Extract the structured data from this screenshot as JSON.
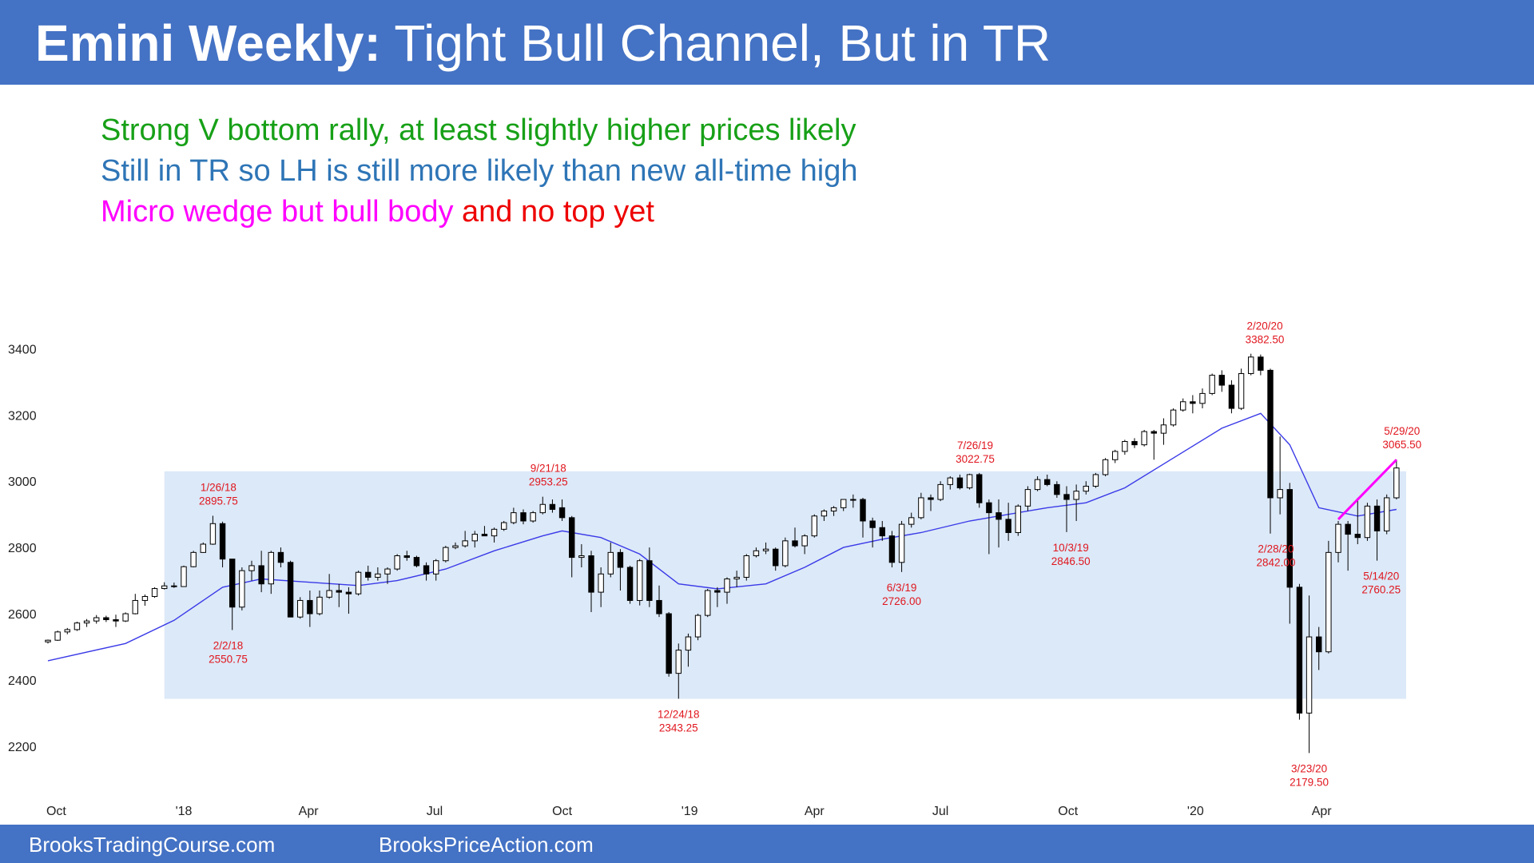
{
  "header": {
    "title_bold": "Emini Weekly:",
    "title_rest": "Tight Bull Channel, But in TR"
  },
  "notes": [
    {
      "segments": [
        {
          "text": "Strong V bottom rally, at least slightly higher prices likely",
          "color": "#17a017"
        }
      ]
    },
    {
      "segments": [
        {
          "text": "Still in TR so LH is still more likely than new all-time high",
          "color": "#2e75b6"
        }
      ]
    },
    {
      "segments": [
        {
          "text": "Micro wedge but bull body ",
          "color": "#ff00ff"
        },
        {
          "text": "and no top yet",
          "color": "#ee0000"
        }
      ]
    }
  ],
  "footer": {
    "left": "BrooksTradingCourse.com",
    "right": "BrooksPriceAction.com"
  },
  "colors": {
    "bar": "#4472c4",
    "range_fill": "#dce9f8",
    "ma_line": "#3a3ae8",
    "wedge_line": "#ff00ff",
    "label": "#e0161e",
    "bull_body": "#ffffff",
    "bear_body": "#000000"
  },
  "chart_data": {
    "type": "candlestick",
    "title": "",
    "timeframe": "weekly",
    "x_range": [
      "2017-09-25",
      "2020-06-01"
    ],
    "y_range": [
      2050,
      3500
    ],
    "yticks": [
      2200,
      2400,
      2600,
      2800,
      3000,
      3200,
      3400
    ],
    "xticks": [
      {
        "label": "Oct",
        "date": "2017-10-01"
      },
      {
        "label": "'18",
        "date": "2018-01-01"
      },
      {
        "label": "Apr",
        "date": "2018-04-01"
      },
      {
        "label": "Jul",
        "date": "2018-07-01"
      },
      {
        "label": "Oct",
        "date": "2018-10-01"
      },
      {
        "label": "'19",
        "date": "2019-01-01"
      },
      {
        "label": "Apr",
        "date": "2019-04-01"
      },
      {
        "label": "Jul",
        "date": "2019-07-01"
      },
      {
        "label": "Oct",
        "date": "2019-10-01"
      },
      {
        "label": "'20",
        "date": "2020-01-01"
      },
      {
        "label": "Apr",
        "date": "2020-04-01"
      }
    ],
    "trading_range": {
      "start": "2017-12-18",
      "end": "2020-06-01",
      "low": 2343,
      "high": 3030
    },
    "annotations": [
      {
        "date": "2018-01-26",
        "lines": [
          "1/26/18",
          "2895.75"
        ],
        "pos": "above",
        "value": 2895.75
      },
      {
        "date": "2018-02-02",
        "lines": [
          "2/2/18",
          "2550.75"
        ],
        "pos": "below",
        "value": 2550.75
      },
      {
        "date": "2018-09-21",
        "lines": [
          "9/21/18",
          "2953.25"
        ],
        "pos": "above",
        "value": 2953.25
      },
      {
        "date": "2018-12-24",
        "lines": [
          "12/24/18",
          "2343.25"
        ],
        "pos": "below",
        "value": 2343.25
      },
      {
        "date": "2019-06-03",
        "lines": [
          "6/3/19",
          "2726.00"
        ],
        "pos": "below",
        "value": 2726.0
      },
      {
        "date": "2019-07-26",
        "lines": [
          "7/26/19",
          "3022.75"
        ],
        "pos": "above",
        "value": 3022.75
      },
      {
        "date": "2019-10-03",
        "lines": [
          "10/3/19",
          "2846.50"
        ],
        "pos": "below",
        "value": 2846.5
      },
      {
        "date": "2020-02-20",
        "lines": [
          "2/20/20",
          "3382.50"
        ],
        "pos": "above",
        "value": 3382.5
      },
      {
        "date": "2020-02-28",
        "lines": [
          "2/28/20",
          "2842.00"
        ],
        "pos": "below",
        "value": 2842.0
      },
      {
        "date": "2020-03-23",
        "lines": [
          "3/23/20",
          "2179.50"
        ],
        "pos": "below",
        "value": 2179.5
      },
      {
        "date": "2020-05-14",
        "lines": [
          "5/14/20",
          "2760.25"
        ],
        "pos": "below",
        "value": 2760.25
      },
      {
        "date": "2020-05-29",
        "lines": [
          "5/29/20",
          "3065.50"
        ],
        "pos": "above",
        "value": 3065.5
      }
    ],
    "wedge_line": [
      {
        "date": "2020-04-13",
        "value": 2885
      },
      {
        "date": "2020-05-25",
        "value": 3065
      }
    ],
    "moving_average_20": [
      [
        "2017-09-25",
        2458
      ],
      [
        "2017-11-20",
        2510
      ],
      [
        "2017-12-25",
        2580
      ],
      [
        "2018-01-29",
        2680
      ],
      [
        "2018-02-26",
        2705
      ],
      [
        "2018-04-02",
        2695
      ],
      [
        "2018-05-07",
        2685
      ],
      [
        "2018-06-04",
        2700
      ],
      [
        "2018-07-09",
        2735
      ],
      [
        "2018-08-13",
        2790
      ],
      [
        "2018-09-17",
        2835
      ],
      [
        "2018-10-01",
        2850
      ],
      [
        "2018-10-29",
        2830
      ],
      [
        "2018-11-26",
        2780
      ],
      [
        "2018-12-24",
        2690
      ],
      [
        "2019-01-21",
        2675
      ],
      [
        "2019-02-25",
        2690
      ],
      [
        "2019-03-25",
        2740
      ],
      [
        "2019-04-22",
        2800
      ],
      [
        "2019-05-20",
        2825
      ],
      [
        "2019-06-17",
        2845
      ],
      [
        "2019-07-22",
        2880
      ],
      [
        "2019-08-19",
        2900
      ],
      [
        "2019-09-16",
        2920
      ],
      [
        "2019-10-14",
        2935
      ],
      [
        "2019-11-11",
        2980
      ],
      [
        "2019-12-16",
        3070
      ],
      [
        "2020-01-20",
        3160
      ],
      [
        "2020-02-17",
        3205
      ],
      [
        "2020-03-09",
        3110
      ],
      [
        "2020-03-30",
        2920
      ],
      [
        "2020-04-27",
        2895
      ],
      [
        "2020-05-25",
        2915
      ]
    ],
    "candles": [
      [
        "2017-09-25",
        2515,
        2522,
        2510,
        2520
      ],
      [
        "2017-10-02",
        2520,
        2549,
        2518,
        2545
      ],
      [
        "2017-10-09",
        2545,
        2557,
        2538,
        2552
      ],
      [
        "2017-10-16",
        2552,
        2576,
        2548,
        2572
      ],
      [
        "2017-10-23",
        2572,
        2584,
        2560,
        2578
      ],
      [
        "2017-10-30",
        2578,
        2596,
        2570,
        2588
      ],
      [
        "2017-11-06",
        2588,
        2594,
        2575,
        2582
      ],
      [
        "2017-11-13",
        2582,
        2597,
        2560,
        2578
      ],
      [
        "2017-11-20",
        2578,
        2604,
        2575,
        2600
      ],
      [
        "2017-11-27",
        2600,
        2660,
        2598,
        2640
      ],
      [
        "2017-12-04",
        2640,
        2658,
        2624,
        2652
      ],
      [
        "2017-12-11",
        2652,
        2680,
        2648,
        2676
      ],
      [
        "2017-12-18",
        2676,
        2695,
        2673,
        2684
      ],
      [
        "2017-12-25",
        2684,
        2694,
        2678,
        2682
      ],
      [
        "2018-01-01",
        2682,
        2745,
        2682,
        2742
      ],
      [
        "2018-01-08",
        2742,
        2790,
        2740,
        2785
      ],
      [
        "2018-01-15",
        2785,
        2815,
        2784,
        2810
      ],
      [
        "2018-01-22",
        2810,
        2895.75,
        2808,
        2872
      ],
      [
        "2018-01-29",
        2872,
        2878,
        2740,
        2765
      ],
      [
        "2018-02-05",
        2765,
        2765,
        2550.75,
        2620
      ],
      [
        "2018-02-12",
        2620,
        2740,
        2610,
        2730
      ],
      [
        "2018-02-19",
        2730,
        2760,
        2700,
        2745
      ],
      [
        "2018-02-26",
        2745,
        2790,
        2665,
        2690
      ],
      [
        "2018-03-05",
        2690,
        2790,
        2660,
        2785
      ],
      [
        "2018-03-12",
        2785,
        2800,
        2740,
        2755
      ],
      [
        "2018-03-19",
        2755,
        2760,
        2600,
        2590
      ],
      [
        "2018-03-26",
        2590,
        2650,
        2585,
        2640
      ],
      [
        "2018-04-02",
        2640,
        2670,
        2560,
        2600
      ],
      [
        "2018-04-09",
        2600,
        2670,
        2595,
        2650
      ],
      [
        "2018-04-16",
        2650,
        2720,
        2645,
        2670
      ],
      [
        "2018-04-23",
        2670,
        2690,
        2620,
        2665
      ],
      [
        "2018-04-30",
        2665,
        2680,
        2600,
        2660
      ],
      [
        "2018-05-07",
        2660,
        2730,
        2655,
        2725
      ],
      [
        "2018-05-14",
        2725,
        2745,
        2700,
        2710
      ],
      [
        "2018-05-21",
        2710,
        2740,
        2700,
        2720
      ],
      [
        "2018-05-28",
        2720,
        2740,
        2690,
        2735
      ],
      [
        "2018-06-04",
        2735,
        2780,
        2730,
        2775
      ],
      [
        "2018-06-11",
        2775,
        2790,
        2760,
        2770
      ],
      [
        "2018-06-18",
        2770,
        2775,
        2740,
        2745
      ],
      [
        "2018-06-25",
        2745,
        2755,
        2700,
        2720
      ],
      [
        "2018-07-02",
        2720,
        2765,
        2700,
        2760
      ],
      [
        "2018-07-09",
        2760,
        2805,
        2755,
        2800
      ],
      [
        "2018-07-16",
        2800,
        2815,
        2795,
        2805
      ],
      [
        "2018-07-23",
        2805,
        2850,
        2800,
        2820
      ],
      [
        "2018-07-30",
        2820,
        2850,
        2800,
        2840
      ],
      [
        "2018-08-06",
        2840,
        2865,
        2835,
        2835
      ],
      [
        "2018-08-13",
        2835,
        2860,
        2815,
        2855
      ],
      [
        "2018-08-20",
        2855,
        2880,
        2850,
        2875
      ],
      [
        "2018-08-27",
        2875,
        2920,
        2870,
        2905
      ],
      [
        "2018-09-03",
        2905,
        2915,
        2870,
        2880
      ],
      [
        "2018-09-10",
        2880,
        2910,
        2875,
        2905
      ],
      [
        "2018-09-17",
        2905,
        2953.25,
        2900,
        2930
      ],
      [
        "2018-09-24",
        2930,
        2945,
        2905,
        2915
      ],
      [
        "2018-10-01",
        2920,
        2945,
        2880,
        2890
      ],
      [
        "2018-10-08",
        2890,
        2895,
        2710,
        2770
      ],
      [
        "2018-10-15",
        2770,
        2810,
        2740,
        2775
      ],
      [
        "2018-10-22",
        2775,
        2790,
        2605,
        2665
      ],
      [
        "2018-10-29",
        2665,
        2740,
        2620,
        2720
      ],
      [
        "2018-11-05",
        2720,
        2815,
        2710,
        2785
      ],
      [
        "2018-11-12",
        2785,
        2795,
        2670,
        2740
      ],
      [
        "2018-11-19",
        2740,
        2745,
        2630,
        2640
      ],
      [
        "2018-11-26",
        2640,
        2765,
        2625,
        2760
      ],
      [
        "2018-12-03",
        2760,
        2800,
        2620,
        2640
      ],
      [
        "2018-12-10",
        2640,
        2685,
        2590,
        2600
      ],
      [
        "2018-12-17",
        2600,
        2605,
        2410,
        2420
      ],
      [
        "2018-12-24",
        2420,
        2510,
        2343.25,
        2490
      ],
      [
        "2018-12-31",
        2490,
        2540,
        2440,
        2530
      ],
      [
        "2019-01-07",
        2530,
        2600,
        2520,
        2595
      ],
      [
        "2019-01-14",
        2595,
        2675,
        2590,
        2670
      ],
      [
        "2019-01-21",
        2670,
        2680,
        2620,
        2665
      ],
      [
        "2019-01-28",
        2665,
        2710,
        2630,
        2705
      ],
      [
        "2019-02-04",
        2705,
        2730,
        2680,
        2710
      ],
      [
        "2019-02-11",
        2710,
        2780,
        2700,
        2775
      ],
      [
        "2019-02-18",
        2775,
        2800,
        2770,
        2790
      ],
      [
        "2019-02-25",
        2790,
        2815,
        2780,
        2795
      ],
      [
        "2019-03-04",
        2795,
        2800,
        2730,
        2745
      ],
      [
        "2019-03-11",
        2745,
        2830,
        2740,
        2820
      ],
      [
        "2019-03-18",
        2820,
        2860,
        2800,
        2805
      ],
      [
        "2019-03-25",
        2805,
        2840,
        2780,
        2835
      ],
      [
        "2019-04-01",
        2835,
        2900,
        2830,
        2895
      ],
      [
        "2019-04-08",
        2895,
        2915,
        2880,
        2910
      ],
      [
        "2019-04-15",
        2910,
        2925,
        2895,
        2920
      ],
      [
        "2019-04-22",
        2920,
        2945,
        2910,
        2945
      ],
      [
        "2019-04-29",
        2945,
        2960,
        2920,
        2945
      ],
      [
        "2019-05-06",
        2945,
        2950,
        2830,
        2880
      ],
      [
        "2019-05-13",
        2880,
        2890,
        2800,
        2860
      ],
      [
        "2019-05-20",
        2860,
        2880,
        2820,
        2835
      ],
      [
        "2019-05-27",
        2835,
        2850,
        2740,
        2755
      ],
      [
        "2019-06-03",
        2755,
        2880,
        2726,
        2870
      ],
      [
        "2019-06-10",
        2870,
        2905,
        2860,
        2890
      ],
      [
        "2019-06-17",
        2890,
        2965,
        2885,
        2950
      ],
      [
        "2019-06-24",
        2950,
        2960,
        2910,
        2945
      ],
      [
        "2019-07-01",
        2945,
        3000,
        2940,
        2990
      ],
      [
        "2019-07-08",
        2990,
        3015,
        2975,
        3010
      ],
      [
        "2019-07-15",
        3010,
        3020,
        2975,
        2980
      ],
      [
        "2019-07-22",
        2980,
        3022.75,
        2975,
        3020
      ],
      [
        "2019-07-29",
        3020,
        3025,
        2920,
        2935
      ],
      [
        "2019-08-05",
        2935,
        2945,
        2780,
        2905
      ],
      [
        "2019-08-12",
        2905,
        2945,
        2800,
        2885
      ],
      [
        "2019-08-19",
        2885,
        2935,
        2820,
        2845
      ],
      [
        "2019-08-26",
        2845,
        2930,
        2835,
        2925
      ],
      [
        "2019-09-02",
        2925,
        2985,
        2910,
        2975
      ],
      [
        "2019-09-09",
        2975,
        3015,
        2970,
        3005
      ],
      [
        "2019-09-16",
        3005,
        3020,
        2985,
        2990
      ],
      [
        "2019-09-23",
        2990,
        3000,
        2950,
        2960
      ],
      [
        "2019-09-30",
        2960,
        2985,
        2846.5,
        2945
      ],
      [
        "2019-10-07",
        2945,
        2990,
        2880,
        2970
      ],
      [
        "2019-10-14",
        2970,
        3000,
        2960,
        2985
      ],
      [
        "2019-10-21",
        2985,
        3025,
        2980,
        3020
      ],
      [
        "2019-10-28",
        3020,
        3070,
        3015,
        3065
      ],
      [
        "2019-11-04",
        3065,
        3095,
        3055,
        3090
      ],
      [
        "2019-11-11",
        3090,
        3125,
        3080,
        3120
      ],
      [
        "2019-11-18",
        3120,
        3130,
        3100,
        3110
      ],
      [
        "2019-11-25",
        3110,
        3155,
        3105,
        3150
      ],
      [
        "2019-12-02",
        3150,
        3155,
        3065,
        3145
      ],
      [
        "2019-12-09",
        3145,
        3190,
        3110,
        3170
      ],
      [
        "2019-12-16",
        3170,
        3220,
        3165,
        3215
      ],
      [
        "2019-12-23",
        3215,
        3250,
        3210,
        3240
      ],
      [
        "2019-12-30",
        3240,
        3260,
        3205,
        3235
      ],
      [
        "2020-01-06",
        3235,
        3280,
        3220,
        3265
      ],
      [
        "2020-01-13",
        3265,
        3325,
        3260,
        3320
      ],
      [
        "2020-01-20",
        3320,
        3335,
        3270,
        3290
      ],
      [
        "2020-01-27",
        3290,
        3305,
        3205,
        3220
      ],
      [
        "2020-02-03",
        3220,
        3340,
        3215,
        3325
      ],
      [
        "2020-02-10",
        3325,
        3385,
        3320,
        3375
      ],
      [
        "2020-02-17",
        3375,
        3382.5,
        3320,
        3335
      ],
      [
        "2020-02-24",
        3335,
        3340,
        2842,
        2950
      ],
      [
        "2020-03-02",
        2950,
        3135,
        2900,
        2975
      ],
      [
        "2020-03-09",
        2975,
        2995,
        2570,
        2680
      ],
      [
        "2020-03-16",
        2680,
        2690,
        2280,
        2300
      ],
      [
        "2020-03-23",
        2300,
        2655,
        2179.5,
        2530
      ],
      [
        "2020-03-30",
        2530,
        2560,
        2430,
        2485
      ],
      [
        "2020-04-06",
        2485,
        2820,
        2480,
        2785
      ],
      [
        "2020-04-13",
        2785,
        2880,
        2755,
        2870
      ],
      [
        "2020-04-20",
        2870,
        2880,
        2730,
        2840
      ],
      [
        "2020-04-27",
        2840,
        2950,
        2810,
        2830
      ],
      [
        "2020-05-04",
        2830,
        2935,
        2820,
        2925
      ],
      [
        "2020-05-11",
        2925,
        2945,
        2760.25,
        2850
      ],
      [
        "2020-05-18",
        2850,
        2960,
        2840,
        2950
      ],
      [
        "2020-05-25",
        2950,
        3065.5,
        2945,
        3040
      ]
    ]
  }
}
